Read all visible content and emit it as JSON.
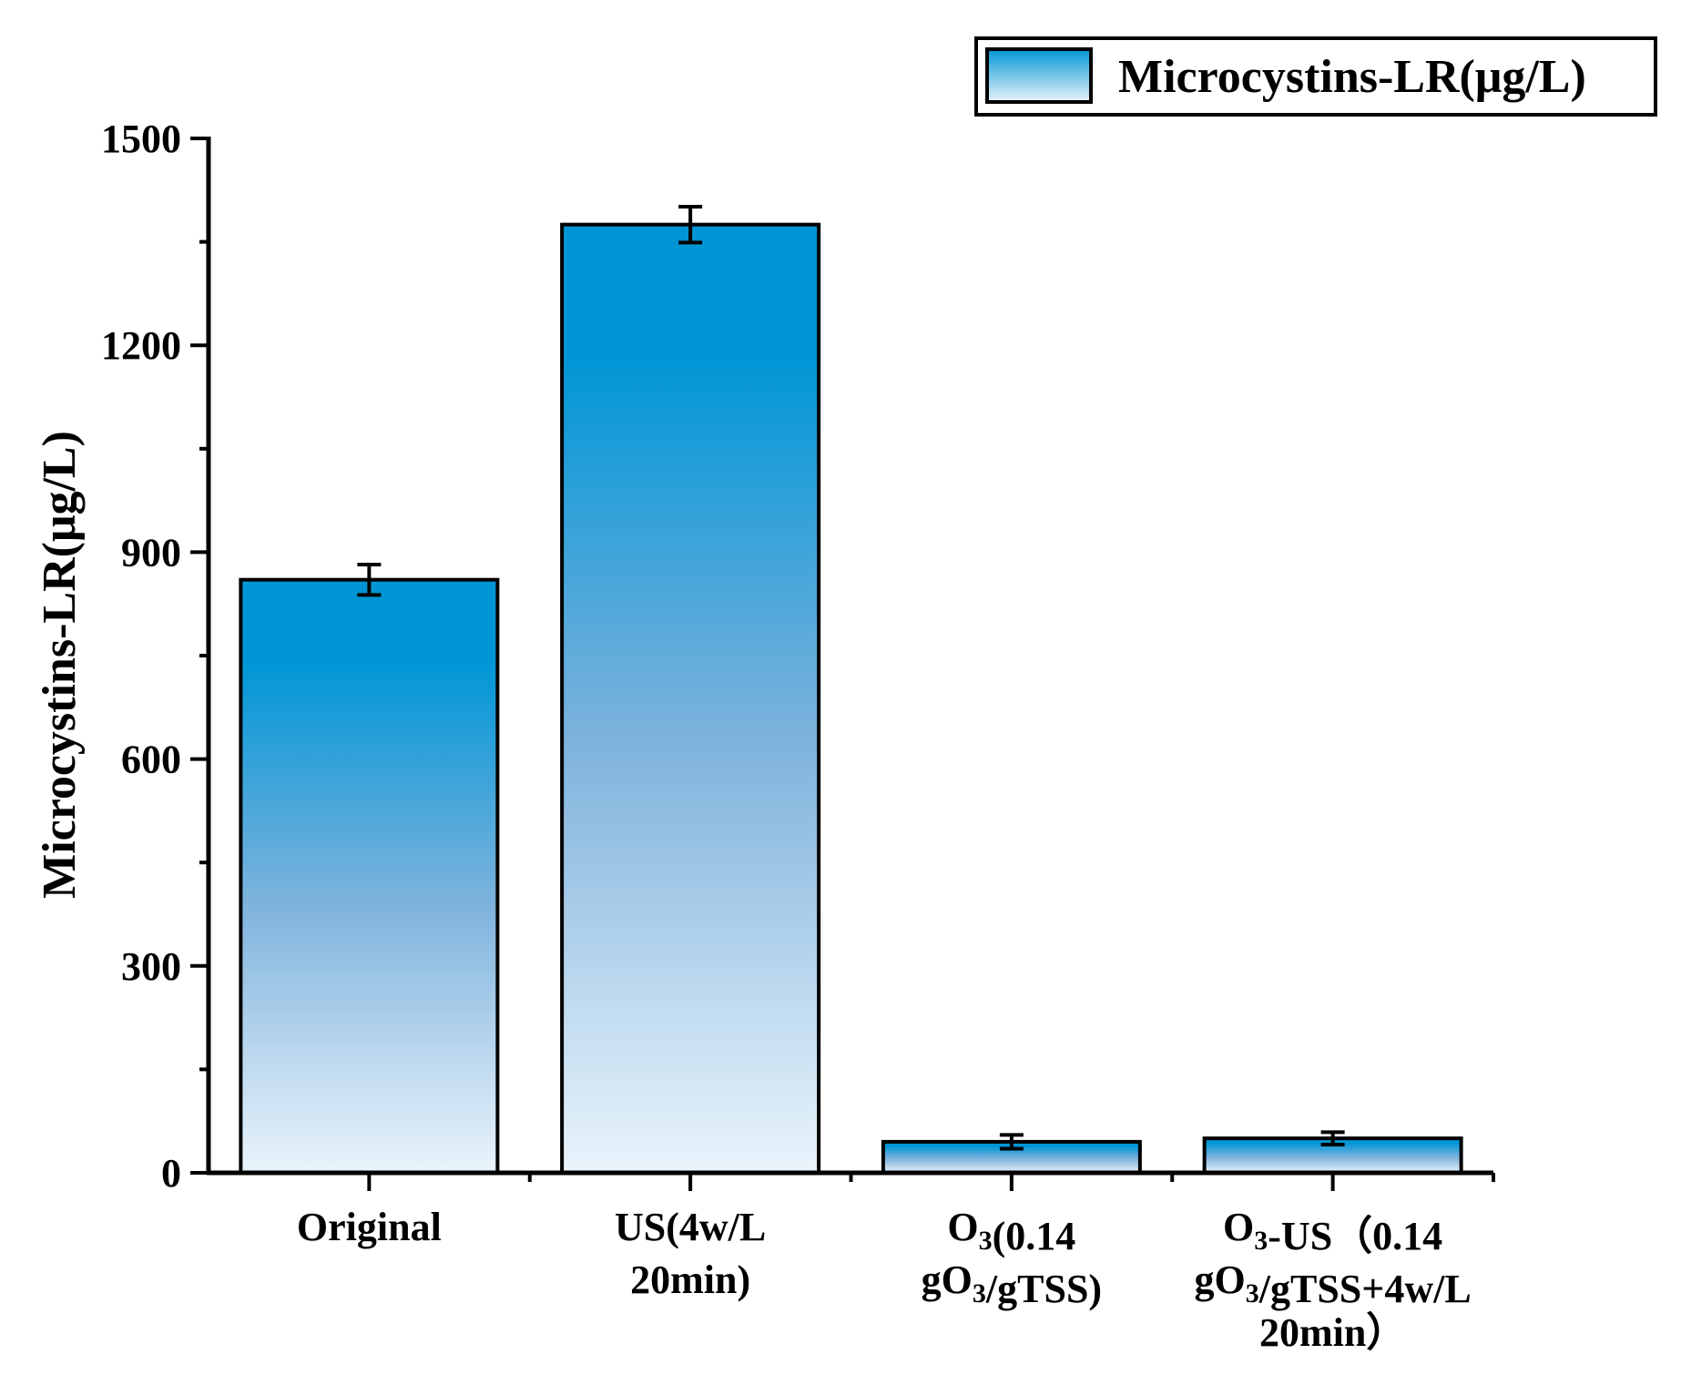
{
  "chart_data": {
    "type": "bar",
    "title": "",
    "ylabel": "Microcystins-LR(μg/L)",
    "xlabel": "",
    "ylim": [
      0,
      1500
    ],
    "yticks": [
      0,
      300,
      600,
      900,
      1200,
      1500
    ],
    "yticks_labels": [
      "0",
      "300",
      "600",
      "900",
      "1200",
      "1500"
    ],
    "grid": false,
    "legend": {
      "position": "top-right",
      "label": "Microcystins-LR(μg/L)"
    },
    "categories": [
      {
        "lines": [
          [
            {
              "t": "Original"
            }
          ]
        ]
      },
      {
        "lines": [
          [
            {
              "t": "US(4w/L"
            }
          ],
          [
            {
              "t": "20min)"
            }
          ]
        ]
      },
      {
        "lines": [
          [
            {
              "t": "O"
            },
            {
              "t": "3",
              "sub": true
            },
            {
              "t": "(0.14"
            }
          ],
          [
            {
              "t": "gO"
            },
            {
              "t": "3",
              "sub": true
            },
            {
              "t": "/gTSS)"
            }
          ]
        ]
      },
      {
        "lines": [
          [
            {
              "t": "O"
            },
            {
              "t": "3",
              "sub": true
            },
            {
              "t": "-US（0.14"
            }
          ],
          [
            {
              "t": "gO"
            },
            {
              "t": "3",
              "sub": true
            },
            {
              "t": "/gTSS+4w/L"
            }
          ],
          [
            {
              "t": "20min）"
            }
          ]
        ]
      }
    ],
    "series": [
      {
        "name": "Microcystins-LR(μg/L)",
        "values": [
          860,
          1375,
          45,
          50
        ],
        "errors": [
          22,
          26,
          10,
          9
        ]
      }
    ],
    "colors": {
      "bar_top": "#0096d6",
      "bar_mid": "#7fb3dd",
      "bar_bottom": "#eaf4fb",
      "outline": "#000000"
    }
  }
}
